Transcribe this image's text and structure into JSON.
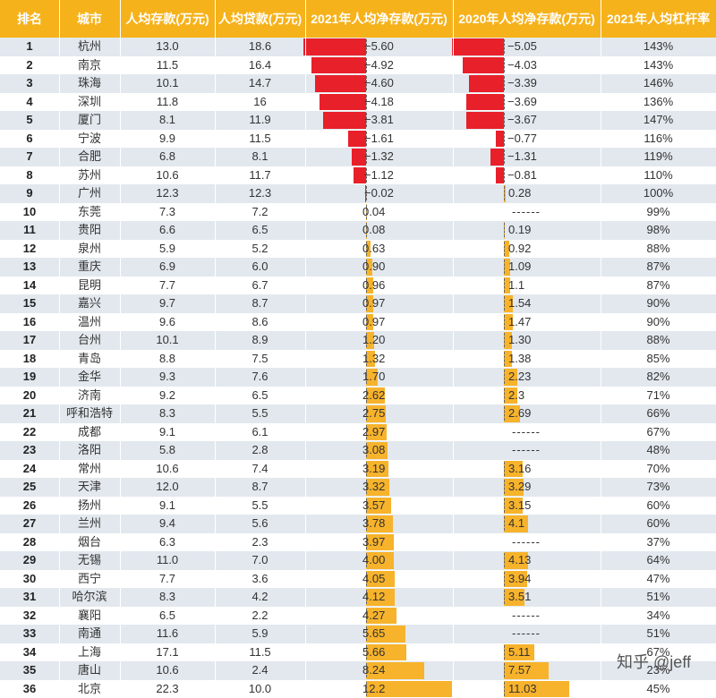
{
  "chart_data": {
    "type": "table",
    "columns": [
      "排名",
      "城市",
      "人均存款(万元)",
      "人均贷款(万元)",
      "2021年人均净存款(万元)",
      "2020年人均净存款(万元)",
      "2021年人均杠杆率"
    ],
    "rows": [
      {
        "rank": "1",
        "city": "杭州",
        "dep": "13.0",
        "loan": "18.6",
        "net2021": -5.6,
        "net2021_label": "-5.60",
        "net2020": -5.05,
        "net2020_label": "-5.05",
        "leverage": "143%"
      },
      {
        "rank": "2",
        "city": "南京",
        "dep": "11.5",
        "loan": "16.4",
        "net2021": -4.92,
        "net2021_label": "-4.92",
        "net2020": -4.03,
        "net2020_label": "-4.03",
        "leverage": "143%"
      },
      {
        "rank": "3",
        "city": "珠海",
        "dep": "10.1",
        "loan": "14.7",
        "net2021": -4.6,
        "net2021_label": "-4.60",
        "net2020": -3.39,
        "net2020_label": "-3.39",
        "leverage": "146%"
      },
      {
        "rank": "4",
        "city": "深圳",
        "dep": "11.8",
        "loan": "16",
        "net2021": -4.18,
        "net2021_label": "-4.18",
        "net2020": -3.69,
        "net2020_label": "-3.69",
        "leverage": "136%"
      },
      {
        "rank": "5",
        "city": "厦门",
        "dep": "8.1",
        "loan": "11.9",
        "net2021": -3.81,
        "net2021_label": "-3.81",
        "net2020": -3.67,
        "net2020_label": "-3.67",
        "leverage": "147%"
      },
      {
        "rank": "6",
        "city": "宁波",
        "dep": "9.9",
        "loan": "11.5",
        "net2021": -1.61,
        "net2021_label": "-1.61",
        "net2020": -0.77,
        "net2020_label": "-0.77",
        "leverage": "116%"
      },
      {
        "rank": "7",
        "city": "合肥",
        "dep": "6.8",
        "loan": "8.1",
        "net2021": -1.32,
        "net2021_label": "-1.32",
        "net2020": -1.31,
        "net2020_label": "-1.31",
        "leverage": "119%"
      },
      {
        "rank": "8",
        "city": "苏州",
        "dep": "10.6",
        "loan": "11.7",
        "net2021": -1.12,
        "net2021_label": "-1.12",
        "net2020": -0.81,
        "net2020_label": "-0.81",
        "leverage": "110%"
      },
      {
        "rank": "9",
        "city": "广州",
        "dep": "12.3",
        "loan": "12.3",
        "net2021": -0.02,
        "net2021_label": "-0.02",
        "net2020": 0.28,
        "net2020_label": "0.28",
        "leverage": "100%"
      },
      {
        "rank": "10",
        "city": "东莞",
        "dep": "7.3",
        "loan": "7.2",
        "net2021": 0.04,
        "net2021_label": "0.04",
        "net2020": null,
        "net2020_label": "------",
        "leverage": "99%"
      },
      {
        "rank": "11",
        "city": "贵阳",
        "dep": "6.6",
        "loan": "6.5",
        "net2021": 0.08,
        "net2021_label": "0.08",
        "net2020": 0.19,
        "net2020_label": "0.19",
        "leverage": "98%"
      },
      {
        "rank": "12",
        "city": "泉州",
        "dep": "5.9",
        "loan": "5.2",
        "net2021": 0.63,
        "net2021_label": "0.63",
        "net2020": 0.92,
        "net2020_label": "0.92",
        "leverage": "88%"
      },
      {
        "rank": "13",
        "city": "重庆",
        "dep": "6.9",
        "loan": "6.0",
        "net2021": 0.9,
        "net2021_label": "0.90",
        "net2020": 1.09,
        "net2020_label": "1.09",
        "leverage": "87%"
      },
      {
        "rank": "14",
        "city": "昆明",
        "dep": "7.7",
        "loan": "6.7",
        "net2021": 0.96,
        "net2021_label": "0.96",
        "net2020": 1.1,
        "net2020_label": "1.1",
        "leverage": "87%"
      },
      {
        "rank": "15",
        "city": "嘉兴",
        "dep": "9.7",
        "loan": "8.7",
        "net2021": 0.97,
        "net2021_label": "0.97",
        "net2020": 1.54,
        "net2020_label": "1.54",
        "leverage": "90%"
      },
      {
        "rank": "16",
        "city": "温州",
        "dep": "9.6",
        "loan": "8.6",
        "net2021": 0.97,
        "net2021_label": "0.97",
        "net2020": 1.47,
        "net2020_label": "1.47",
        "leverage": "90%"
      },
      {
        "rank": "17",
        "city": "台州",
        "dep": "10.1",
        "loan": "8.9",
        "net2021": 1.2,
        "net2021_label": "1.20",
        "net2020": 1.3,
        "net2020_label": "1.30",
        "leverage": "88%"
      },
      {
        "rank": "18",
        "city": "青岛",
        "dep": "8.8",
        "loan": "7.5",
        "net2021": 1.32,
        "net2021_label": "1.32",
        "net2020": 1.38,
        "net2020_label": "1.38",
        "leverage": "85%"
      },
      {
        "rank": "19",
        "city": "金华",
        "dep": "9.3",
        "loan": "7.6",
        "net2021": 1.7,
        "net2021_label": "1.70",
        "net2020": 2.23,
        "net2020_label": "2.23",
        "leverage": "82%"
      },
      {
        "rank": "20",
        "city": "济南",
        "dep": "9.2",
        "loan": "6.5",
        "net2021": 2.62,
        "net2021_label": "2.62",
        "net2020": 2.3,
        "net2020_label": "2.3",
        "leverage": "71%"
      },
      {
        "rank": "21",
        "city": "呼和浩特",
        "dep": "8.3",
        "loan": "5.5",
        "net2021": 2.75,
        "net2021_label": "2.75",
        "net2020": 2.69,
        "net2020_label": "2.69",
        "leverage": "66%"
      },
      {
        "rank": "22",
        "city": "成都",
        "dep": "9.1",
        "loan": "6.1",
        "net2021": 2.97,
        "net2021_label": "2.97",
        "net2020": null,
        "net2020_label": "------",
        "leverage": "67%"
      },
      {
        "rank": "23",
        "city": "洛阳",
        "dep": "5.8",
        "loan": "2.8",
        "net2021": 3.08,
        "net2021_label": "3.08",
        "net2020": null,
        "net2020_label": "------",
        "leverage": "48%"
      },
      {
        "rank": "24",
        "city": "常州",
        "dep": "10.6",
        "loan": "7.4",
        "net2021": 3.19,
        "net2021_label": "3.19",
        "net2020": 3.16,
        "net2020_label": "3.16",
        "leverage": "70%"
      },
      {
        "rank": "25",
        "city": "天津",
        "dep": "12.0",
        "loan": "8.7",
        "net2021": 3.32,
        "net2021_label": "3.32",
        "net2020": 3.29,
        "net2020_label": "3.29",
        "leverage": "73%"
      },
      {
        "rank": "26",
        "city": "扬州",
        "dep": "9.1",
        "loan": "5.5",
        "net2021": 3.57,
        "net2021_label": "3.57",
        "net2020": 3.15,
        "net2020_label": "3.15",
        "leverage": "60%"
      },
      {
        "rank": "27",
        "city": "兰州",
        "dep": "9.4",
        "loan": "5.6",
        "net2021": 3.78,
        "net2021_label": "3.78",
        "net2020": 4.1,
        "net2020_label": "4.1",
        "leverage": "60%"
      },
      {
        "rank": "28",
        "city": "烟台",
        "dep": "6.3",
        "loan": "2.3",
        "net2021": 3.97,
        "net2021_label": "3.97",
        "net2020": null,
        "net2020_label": "------",
        "leverage": "37%"
      },
      {
        "rank": "29",
        "city": "无锡",
        "dep": "11.0",
        "loan": "7.0",
        "net2021": 4.0,
        "net2021_label": "4.00",
        "net2020": 4.13,
        "net2020_label": "4.13",
        "leverage": "64%"
      },
      {
        "rank": "30",
        "city": "西宁",
        "dep": "7.7",
        "loan": "3.6",
        "net2021": 4.05,
        "net2021_label": "4.05",
        "net2020": 3.94,
        "net2020_label": "3.94",
        "leverage": "47%"
      },
      {
        "rank": "31",
        "city": "哈尔滨",
        "dep": "8.3",
        "loan": "4.2",
        "net2021": 4.12,
        "net2021_label": "4.12",
        "net2020": 3.51,
        "net2020_label": "3.51",
        "leverage": "51%"
      },
      {
        "rank": "32",
        "city": "襄阳",
        "dep": "6.5",
        "loan": "2.2",
        "net2021": 4.27,
        "net2021_label": "4.27",
        "net2020": null,
        "net2020_label": "------",
        "leverage": "34%"
      },
      {
        "rank": "33",
        "city": "南通",
        "dep": "11.6",
        "loan": "5.9",
        "net2021": 5.65,
        "net2021_label": "5.65",
        "net2020": null,
        "net2020_label": "------",
        "leverage": "51%"
      },
      {
        "rank": "34",
        "city": "上海",
        "dep": "17.1",
        "loan": "11.5",
        "net2021": 5.66,
        "net2021_label": "5.66",
        "net2020": 5.11,
        "net2020_label": "5.11",
        "leverage": "67%"
      },
      {
        "rank": "35",
        "city": "唐山",
        "dep": "10.6",
        "loan": "2.4",
        "net2021": 8.24,
        "net2021_label": "8.24",
        "net2020": 7.57,
        "net2020_label": "7.57",
        "leverage": "23%"
      },
      {
        "rank": "36",
        "city": "北京",
        "dep": "22.3",
        "loan": "10.0",
        "net2021": 12.2,
        "net2021_label": "12.2",
        "net2020": 11.03,
        "net2020_label": "11.03",
        "leverage": "45%"
      }
    ],
    "colors": {
      "header_bg": "#f6b21b",
      "header_text": "#ffffff",
      "negative_bar": "#e8202a",
      "positive_bar": "#f7b32b",
      "stripe": "#e2e8ee"
    }
  },
  "watermark": "知乎 @jeff"
}
